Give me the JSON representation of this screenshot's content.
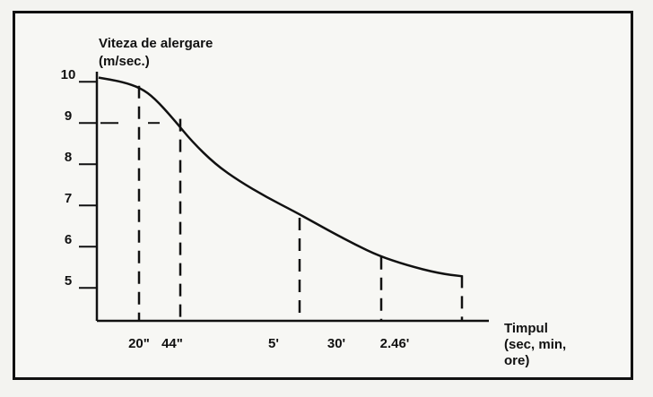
{
  "chart_data": {
    "type": "line",
    "ylabel_line1": "Viteza de alergare",
    "ylabel_line2": "(m/sec.)",
    "xlabel_line1": "Timpul",
    "xlabel_line2": "(sec, min,",
    "xlabel_line3": "ore)",
    "y_ticks": [
      "10",
      "9",
      "8",
      "7",
      "6",
      "5"
    ],
    "ylim": [
      4.2,
      10.2
    ],
    "x_markers": [
      {
        "label": "20\"",
        "y": 9.9
      },
      {
        "label": "44\"",
        "y": 9.1
      },
      {
        "label": "5'",
        "y": 6.7
      },
      {
        "label": "30'",
        "y": 5.75
      },
      {
        "label": "2.46'",
        "y": 5.3
      }
    ],
    "curve": [
      [
        0,
        10.1
      ],
      [
        0.5,
        10.0
      ],
      [
        0.9,
        9.85
      ],
      [
        1.2,
        9.6
      ],
      [
        1.6,
        9.1
      ],
      [
        2.0,
        8.55
      ],
      [
        2.5,
        8.0
      ],
      [
        3.0,
        7.6
      ],
      [
        3.6,
        7.2
      ],
      [
        4.2,
        6.85
      ],
      [
        4.6,
        6.6
      ],
      [
        5.0,
        6.35
      ],
      [
        5.5,
        6.05
      ],
      [
        6.0,
        5.78
      ],
      [
        6.6,
        5.55
      ],
      [
        7.3,
        5.35
      ],
      [
        7.8,
        5.28
      ]
    ]
  }
}
